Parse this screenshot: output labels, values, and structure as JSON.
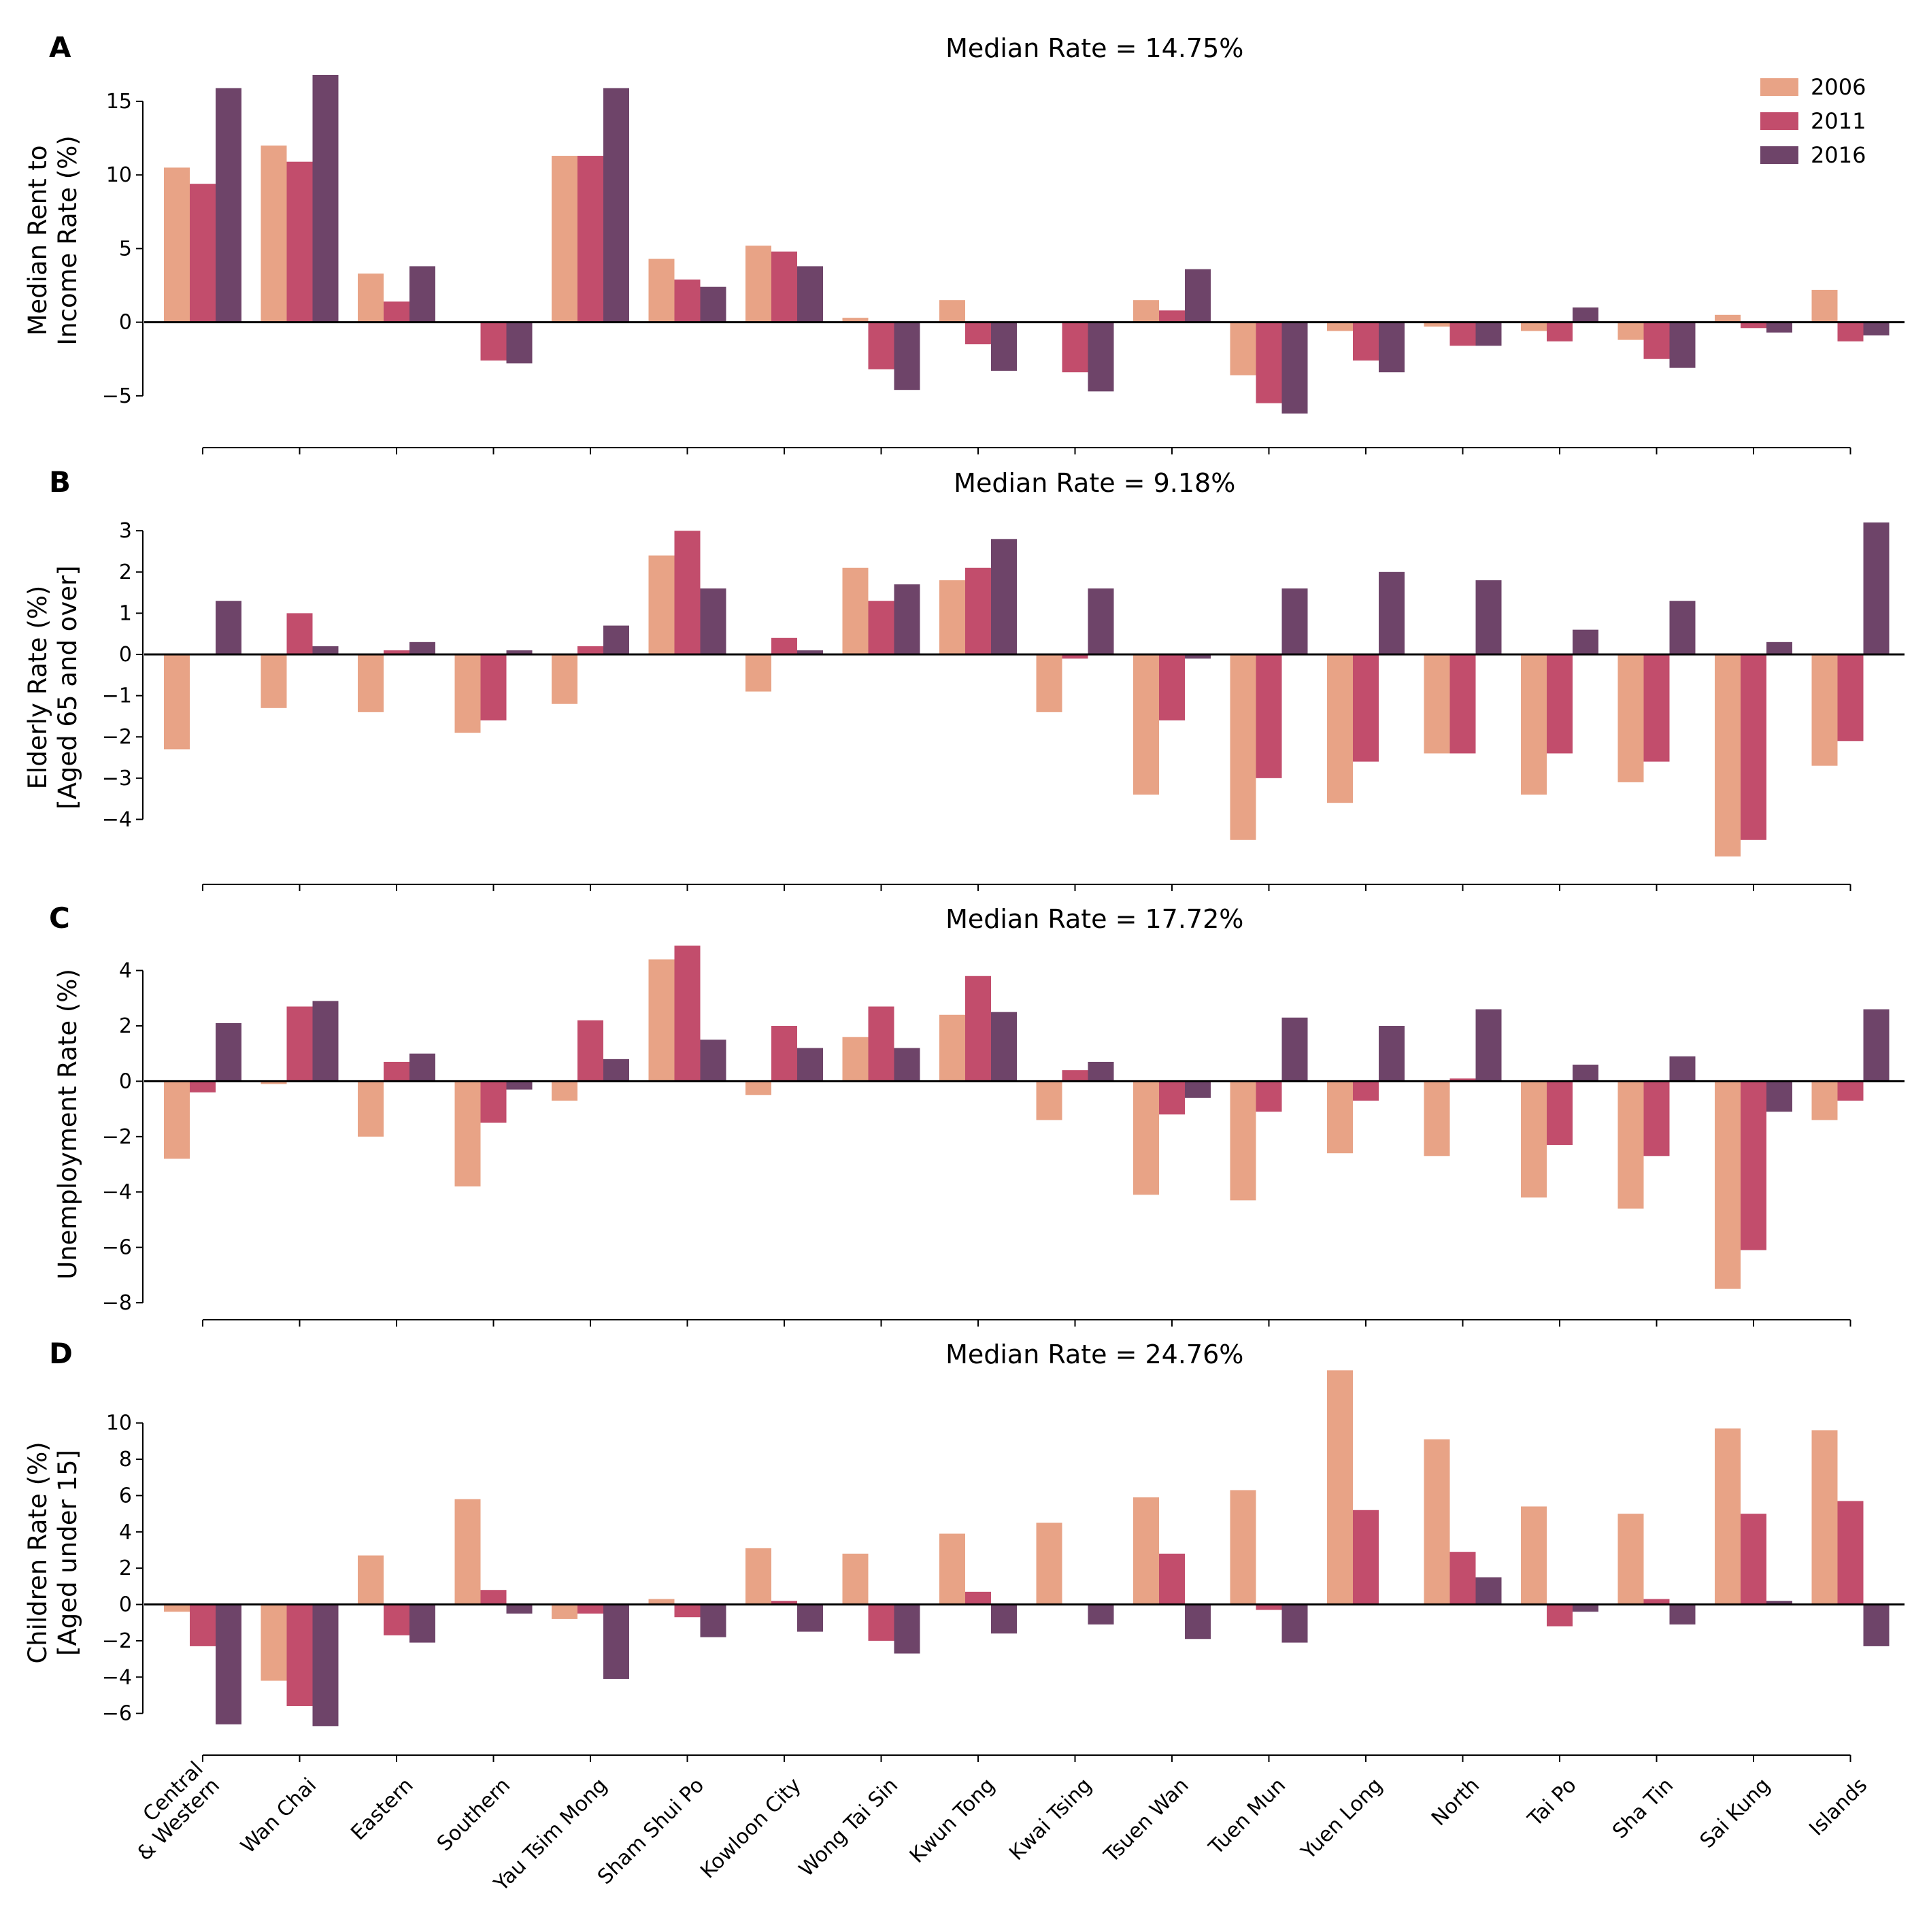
{
  "chart_data": {
    "type": "bar",
    "categories": [
      "Central\n& Western",
      "Wan Chai",
      "Eastern",
      "Southern",
      "Yau Tsim Mong",
      "Sham Shui Po",
      "Kowloon City",
      "Wong Tai Sin",
      "Kwun Tong",
      "Kwai Tsing",
      "Tsuen Wan",
      "Tuen Mun",
      "Yuen Long",
      "North",
      "Tai Po",
      "Sha Tin",
      "Sai Kung",
      "Islands"
    ],
    "legend": {
      "placement": "top-right",
      "series": [
        {
          "name": "2006",
          "color": "#e8a386"
        },
        {
          "name": "2011",
          "color": "#c24d6c"
        },
        {
          "name": "2016",
          "color": "#6e4469"
        }
      ]
    },
    "panels": [
      {
        "letter": "A",
        "title": "Median Rate = 14.75%",
        "ylabel": [
          "Median Rent to",
          "Income Rate (%)"
        ],
        "ylim": [
          -5.7,
          16.8
        ],
        "yticks": [
          -5,
          0,
          5,
          10,
          15
        ],
        "ytick_labels": [
          "−5",
          "0",
          "5",
          "10",
          "15"
        ],
        "series": [
          {
            "name": "2006",
            "values": [
              10.5,
              12.0,
              3.3,
              0.0,
              11.3,
              4.3,
              5.2,
              0.3,
              1.5,
              0.0,
              1.5,
              -3.6,
              -0.6,
              -0.3,
              -0.6,
              -1.2,
              0.5,
              2.2
            ]
          },
          {
            "name": "2011",
            "values": [
              9.4,
              10.9,
              1.4,
              -2.6,
              11.3,
              2.9,
              4.8,
              -3.2,
              -1.5,
              -3.4,
              0.8,
              -5.5,
              -2.6,
              -1.6,
              -1.3,
              -2.5,
              -0.4,
              -1.3
            ]
          },
          {
            "name": "2016",
            "values": [
              15.9,
              16.8,
              3.8,
              -2.8,
              15.9,
              2.4,
              3.8,
              -4.6,
              -3.3,
              -4.7,
              3.6,
              -6.2,
              -3.4,
              -1.6,
              1.0,
              -3.1,
              -0.7,
              -0.9
            ]
          }
        ]
      },
      {
        "letter": "B",
        "title": "Median Rate = 9.18%",
        "ylabel": [
          "Elderly Rate (%)",
          "[Aged 65 and over]"
        ],
        "ylim": [
          -4.9,
          3.3
        ],
        "yticks": [
          -4,
          -3,
          -2,
          -1,
          0,
          1,
          2,
          3
        ],
        "ytick_labels": [
          "−4",
          "−3",
          "−2",
          "−1",
          "0",
          "1",
          "2",
          "3"
        ],
        "series": [
          {
            "name": "2006",
            "values": [
              -2.3,
              -1.3,
              -1.4,
              -1.9,
              -1.2,
              2.4,
              -0.9,
              2.1,
              1.8,
              -1.4,
              -3.4,
              -4.5,
              -3.6,
              -2.4,
              -3.4,
              -3.1,
              -4.9,
              -2.7
            ]
          },
          {
            "name": "2011",
            "values": [
              0.0,
              1.0,
              0.1,
              -1.6,
              0.2,
              3.0,
              0.4,
              1.3,
              2.1,
              -0.1,
              -1.6,
              -3.0,
              -2.6,
              -2.4,
              -2.4,
              -2.6,
              -4.5,
              -2.1
            ]
          },
          {
            "name": "2016",
            "values": [
              1.3,
              0.2,
              0.3,
              0.1,
              0.7,
              1.6,
              0.1,
              1.7,
              2.8,
              1.6,
              -0.1,
              1.6,
              2.0,
              1.8,
              0.6,
              1.3,
              0.3,
              3.2
            ]
          }
        ]
      },
      {
        "letter": "C",
        "title": "Median Rate = 17.72%",
        "ylabel": [
          "Unemployment Rate (%)"
        ],
        "ylim": [
          -8.0,
          4.9
        ],
        "yticks": [
          -8,
          -6,
          -4,
          -2,
          0,
          2,
          4
        ],
        "ytick_labels": [
          "−8",
          "−6",
          "−4",
          "−2",
          "0",
          "2",
          "4"
        ],
        "series": [
          {
            "name": "2006",
            "values": [
              -2.8,
              -0.1,
              -2.0,
              -3.8,
              -0.7,
              4.4,
              -0.5,
              1.6,
              2.4,
              -1.4,
              -4.1,
              -4.3,
              -2.6,
              -2.7,
              -4.2,
              -4.6,
              -7.5,
              -1.4
            ]
          },
          {
            "name": "2011",
            "values": [
              -0.4,
              2.7,
              0.7,
              -1.5,
              2.2,
              4.9,
              2.0,
              2.7,
              3.8,
              0.4,
              -1.2,
              -1.1,
              -0.7,
              0.1,
              -2.3,
              -2.7,
              -6.1,
              -0.7
            ]
          },
          {
            "name": "2016",
            "values": [
              2.1,
              2.9,
              1.0,
              -0.3,
              0.8,
              1.5,
              1.2,
              1.2,
              2.5,
              0.7,
              -0.6,
              2.3,
              2.0,
              2.6,
              0.6,
              0.9,
              -1.1,
              2.6
            ]
          }
        ]
      },
      {
        "letter": "D",
        "title": "Median Rate = 24.76%",
        "ylabel": [
          "Children Rate (%)",
          "[Aged under 15]"
        ],
        "ylim": [
          -6.8,
          12.5
        ],
        "yticks": [
          -6,
          -4,
          -2,
          0,
          2,
          4,
          6,
          8,
          10
        ],
        "ytick_labels": [
          "−6",
          "−4",
          "−2",
          "0",
          "2",
          "4",
          "6",
          "8",
          "10"
        ],
        "series": [
          {
            "name": "2006",
            "values": [
              -0.4,
              -4.2,
              2.7,
              5.8,
              -0.8,
              0.3,
              3.1,
              2.8,
              3.9,
              4.5,
              5.9,
              6.3,
              12.9,
              9.1,
              5.4,
              5.0,
              9.7,
              9.6
            ]
          },
          {
            "name": "2011",
            "values": [
              -2.3,
              -5.6,
              -1.7,
              0.8,
              -0.5,
              -0.7,
              0.2,
              -2.0,
              0.7,
              0.0,
              2.8,
              -0.3,
              5.2,
              2.9,
              -1.2,
              0.3,
              5.0,
              5.7
            ]
          },
          {
            "name": "2016",
            "values": [
              -6.6,
              -6.7,
              -2.1,
              -0.5,
              -4.1,
              -1.8,
              -1.5,
              -2.7,
              -1.6,
              -1.1,
              -1.9,
              -2.1,
              0.0,
              1.5,
              -0.4,
              -1.1,
              0.2,
              -2.3
            ]
          }
        ]
      }
    ]
  }
}
